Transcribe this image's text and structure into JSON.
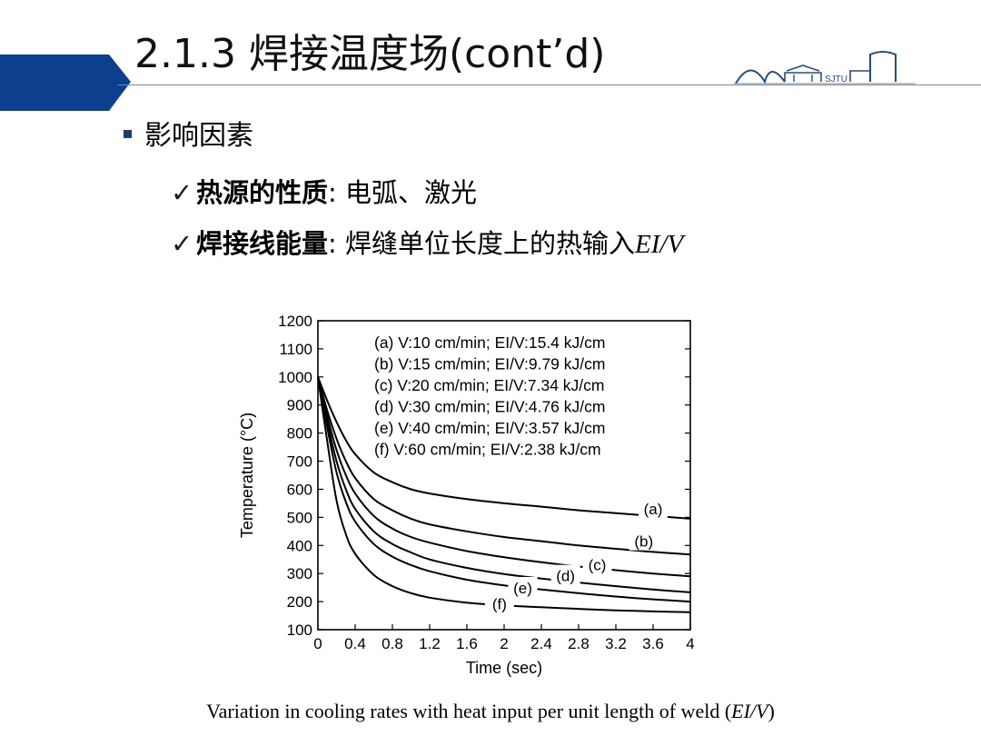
{
  "slide": {
    "title": "2.1.3 焊接温度场(cont’d)",
    "bullet": "影响因素",
    "items": [
      {
        "check": "✓",
        "bold": "热源的性质",
        "colon": ":",
        "text": "电弧、激光",
        "italic": ""
      },
      {
        "check": "✓",
        "bold": "焊接线能量",
        "colon": ":",
        "text": "焊缝单位长度上的热输入",
        "italic": "EI/V"
      }
    ],
    "logo_label": "SJTU",
    "caption_main": "Variation in cooling rates with heat input per unit length of weld (",
    "caption_italic": "EI/V",
    "caption_end": ")",
    "accent_color": "#0d3f8f"
  },
  "chart_data": {
    "type": "line",
    "xlabel": "Time (sec)",
    "ylabel": "Temperature (°C)",
    "xlim": [
      0,
      4
    ],
    "ylim": [
      100,
      1200
    ],
    "xticks": [
      "0",
      "0.4",
      "0.8",
      "1.2",
      "1.6",
      "2",
      "2.4",
      "2.8",
      "3.2",
      "3.6",
      "4"
    ],
    "yticks": [
      "100",
      "200",
      "300",
      "400",
      "500",
      "600",
      "700",
      "800",
      "900",
      "1000",
      "1100",
      "1200"
    ],
    "legend": [
      "(a) V:10 cm/min; EI/V:15.4 kJ/cm",
      "(b) V:15 cm/min; EI/V:9.79 kJ/cm",
      "(c) V:20 cm/min; EI/V:7.34 kJ/cm",
      "(d) V:30 cm/min; EI/V:4.76 kJ/cm",
      "(e) V:40 cm/min; EI/V:3.57 kJ/cm",
      "(f)  V:60 cm/min; EI/V:2.38 kJ/cm"
    ],
    "legend_position": "top-right",
    "grid": false,
    "x": [
      0,
      0.1,
      0.2,
      0.3,
      0.4,
      0.6,
      0.8,
      1.0,
      1.2,
      1.6,
      2.0,
      2.4,
      2.8,
      3.2,
      3.6,
      4.0
    ],
    "series": [
      {
        "name": "(a)",
        "values": [
          1000,
          915,
          840,
          775,
          725,
          660,
          625,
          600,
          585,
          565,
          550,
          538,
          525,
          515,
          505,
          495
        ]
      },
      {
        "name": "(b)",
        "values": [
          1000,
          880,
          780,
          700,
          640,
          565,
          525,
          495,
          475,
          450,
          430,
          415,
          400,
          388,
          377,
          368
        ]
      },
      {
        "name": "(c)",
        "values": [
          1000,
          860,
          740,
          650,
          585,
          505,
          460,
          430,
          410,
          380,
          358,
          340,
          325,
          312,
          300,
          290
        ]
      },
      {
        "name": "(d)",
        "values": [
          1000,
          840,
          700,
          600,
          530,
          450,
          405,
          375,
          350,
          320,
          298,
          282,
          268,
          255,
          243,
          233
        ]
      },
      {
        "name": "(e)",
        "values": [
          1000,
          820,
          660,
          555,
          485,
          405,
          360,
          330,
          308,
          278,
          258,
          243,
          230,
          218,
          208,
          200
        ]
      },
      {
        "name": "(f)",
        "values": [
          1000,
          770,
          560,
          440,
          370,
          295,
          255,
          230,
          214,
          196,
          186,
          180,
          174,
          169,
          165,
          162
        ]
      }
    ],
    "curve_labels": [
      "(a)",
      "(b)",
      "(c)",
      "(d)",
      "(e)",
      "(f)"
    ],
    "curve_label_points": [
      [
        3.6,
        531
      ],
      [
        3.5,
        415
      ],
      [
        3.0,
        332
      ],
      [
        2.66,
        292
      ],
      [
        2.2,
        249
      ],
      [
        1.95,
        193
      ]
    ]
  }
}
